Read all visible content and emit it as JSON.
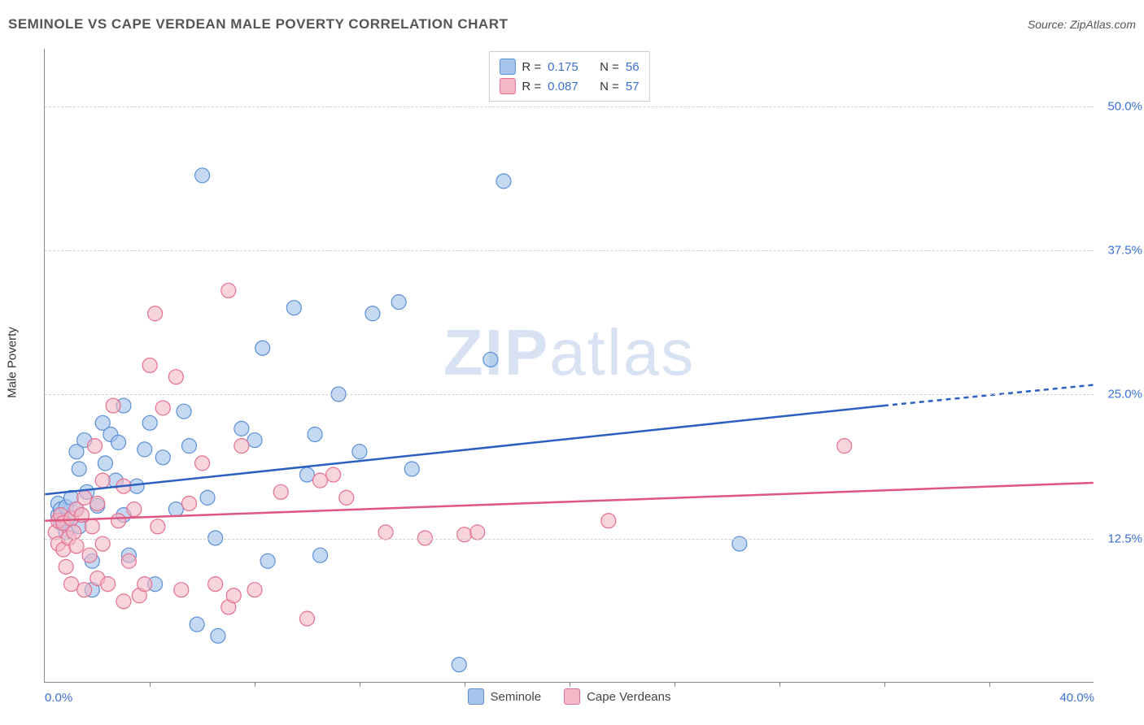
{
  "header": {
    "title": "SEMINOLE VS CAPE VERDEAN MALE POVERTY CORRELATION CHART",
    "source": "Source: ZipAtlas.com"
  },
  "watermark": {
    "zip": "ZIP",
    "atlas": "atlas"
  },
  "axes": {
    "ylabel": "Male Poverty",
    "xlim": [
      0,
      40
    ],
    "ylim": [
      0,
      55
    ],
    "yticks": [
      {
        "v": 12.5,
        "label": "12.5%"
      },
      {
        "v": 25.0,
        "label": "25.0%"
      },
      {
        "v": 37.5,
        "label": "37.5%"
      },
      {
        "v": 50.0,
        "label": "50.0%"
      }
    ],
    "xticks_major": [
      0,
      40
    ],
    "xticks_labels": [
      {
        "v": 0,
        "label": "0.0%"
      },
      {
        "v": 40,
        "label": "40.0%"
      }
    ],
    "xticks_minor": [
      4,
      8,
      12,
      16,
      20,
      24,
      28,
      32,
      36
    ],
    "grid_color": "#d0d0d0",
    "axis_color": "#888888",
    "label_color": "#3b6fd6",
    "label_fontsize": 15
  },
  "series": [
    {
      "name": "Seminole",
      "fill": "#a6c4ec",
      "stroke": "#5a8fd6",
      "line_color": "#2b5fc0",
      "marker_radius": 9,
      "marker_opacity": 0.65,
      "trend": {
        "x1": 0,
        "y1": 16.3,
        "x2": 32,
        "y2": 24.0,
        "dash_x2": 40,
        "dash_y2": 25.8
      },
      "R": "0.175",
      "N": "56",
      "points": [
        [
          0.5,
          14.5
        ],
        [
          0.5,
          15.5
        ],
        [
          0.6,
          13.8
        ],
        [
          0.6,
          15.0
        ],
        [
          0.7,
          14.0
        ],
        [
          0.8,
          15.2
        ],
        [
          0.8,
          13.0
        ],
        [
          1.0,
          16.0
        ],
        [
          1.0,
          14.2
        ],
        [
          1.2,
          15.0
        ],
        [
          1.2,
          20.0
        ],
        [
          1.3,
          13.5
        ],
        [
          1.3,
          18.5
        ],
        [
          1.5,
          21.0
        ],
        [
          1.6,
          16.5
        ],
        [
          1.8,
          10.5
        ],
        [
          1.8,
          8.0
        ],
        [
          2.0,
          15.3
        ],
        [
          2.2,
          22.5
        ],
        [
          2.3,
          19.0
        ],
        [
          2.5,
          21.5
        ],
        [
          2.7,
          17.5
        ],
        [
          2.8,
          20.8
        ],
        [
          3.0,
          14.5
        ],
        [
          3.0,
          24.0
        ],
        [
          3.2,
          11.0
        ],
        [
          3.5,
          17.0
        ],
        [
          3.8,
          20.2
        ],
        [
          4.0,
          22.5
        ],
        [
          4.2,
          8.5
        ],
        [
          4.5,
          19.5
        ],
        [
          5.0,
          15.0
        ],
        [
          5.3,
          23.5
        ],
        [
          5.5,
          20.5
        ],
        [
          5.8,
          5.0
        ],
        [
          6.0,
          44.0
        ],
        [
          6.2,
          16.0
        ],
        [
          6.5,
          12.5
        ],
        [
          6.6,
          4.0
        ],
        [
          7.5,
          22.0
        ],
        [
          8.0,
          21.0
        ],
        [
          8.3,
          29.0
        ],
        [
          8.5,
          10.5
        ],
        [
          9.5,
          32.5
        ],
        [
          10.0,
          18.0
        ],
        [
          10.3,
          21.5
        ],
        [
          10.5,
          11.0
        ],
        [
          11.2,
          25.0
        ],
        [
          12.0,
          20.0
        ],
        [
          12.5,
          32.0
        ],
        [
          13.5,
          33.0
        ],
        [
          14.0,
          18.5
        ],
        [
          15.8,
          1.5
        ],
        [
          17.0,
          28.0
        ],
        [
          17.5,
          43.5
        ],
        [
          26.5,
          12.0
        ]
      ]
    },
    {
      "name": "Cape Verdeans",
      "fill": "#f3b7c5",
      "stroke": "#e46f8e",
      "line_color": "#e0567e",
      "marker_radius": 9,
      "marker_opacity": 0.6,
      "trend": {
        "x1": 0,
        "y1": 14.0,
        "x2": 40,
        "y2": 17.3,
        "dash_x2": 40,
        "dash_y2": 17.3
      },
      "R": "0.087",
      "N": "57",
      "points": [
        [
          0.4,
          13.0
        ],
        [
          0.5,
          14.0
        ],
        [
          0.5,
          12.0
        ],
        [
          0.6,
          14.5
        ],
        [
          0.7,
          11.5
        ],
        [
          0.7,
          13.8
        ],
        [
          0.8,
          10.0
        ],
        [
          0.9,
          12.5
        ],
        [
          1.0,
          14.2
        ],
        [
          1.0,
          8.5
        ],
        [
          1.1,
          13.0
        ],
        [
          1.2,
          15.0
        ],
        [
          1.2,
          11.8
        ],
        [
          1.4,
          14.5
        ],
        [
          1.5,
          8.0
        ],
        [
          1.5,
          16.0
        ],
        [
          1.7,
          11.0
        ],
        [
          1.8,
          13.5
        ],
        [
          1.9,
          20.5
        ],
        [
          2.0,
          9.0
        ],
        [
          2.0,
          15.5
        ],
        [
          2.2,
          17.5
        ],
        [
          2.2,
          12.0
        ],
        [
          2.4,
          8.5
        ],
        [
          2.6,
          24.0
        ],
        [
          2.8,
          14.0
        ],
        [
          3.0,
          7.0
        ],
        [
          3.0,
          17.0
        ],
        [
          3.2,
          10.5
        ],
        [
          3.4,
          15.0
        ],
        [
          3.6,
          7.5
        ],
        [
          3.8,
          8.5
        ],
        [
          4.0,
          27.5
        ],
        [
          4.2,
          32.0
        ],
        [
          4.3,
          13.5
        ],
        [
          4.5,
          23.8
        ],
        [
          5.0,
          26.5
        ],
        [
          5.2,
          8.0
        ],
        [
          5.5,
          15.5
        ],
        [
          6.0,
          19.0
        ],
        [
          6.5,
          8.5
        ],
        [
          7.0,
          34.0
        ],
        [
          7.0,
          6.5
        ],
        [
          7.2,
          7.5
        ],
        [
          7.5,
          20.5
        ],
        [
          8.0,
          8.0
        ],
        [
          9.0,
          16.5
        ],
        [
          10.0,
          5.5
        ],
        [
          10.5,
          17.5
        ],
        [
          11.0,
          18.0
        ],
        [
          11.5,
          16.0
        ],
        [
          13.0,
          13.0
        ],
        [
          14.5,
          12.5
        ],
        [
          16.0,
          12.8
        ],
        [
          16.5,
          13.0
        ],
        [
          21.5,
          14.0
        ],
        [
          30.5,
          20.5
        ]
      ]
    }
  ],
  "legend_top": {
    "rows": [
      {
        "swatch_fill": "#a6c4ec",
        "swatch_stroke": "#5a8fd6",
        "R_label": "R =",
        "R": "0.175",
        "N_label": "N =",
        "N": "56"
      },
      {
        "swatch_fill": "#f3b7c5",
        "swatch_stroke": "#e46f8e",
        "R_label": "R =",
        "R": "0.087",
        "N_label": "N =",
        "N": "57"
      }
    ]
  },
  "legend_bottom": {
    "items": [
      {
        "swatch_fill": "#a6c4ec",
        "swatch_stroke": "#5a8fd6",
        "label": "Seminole"
      },
      {
        "swatch_fill": "#f3b7c5",
        "swatch_stroke": "#e46f8e",
        "label": "Cape Verdeans"
      }
    ]
  }
}
